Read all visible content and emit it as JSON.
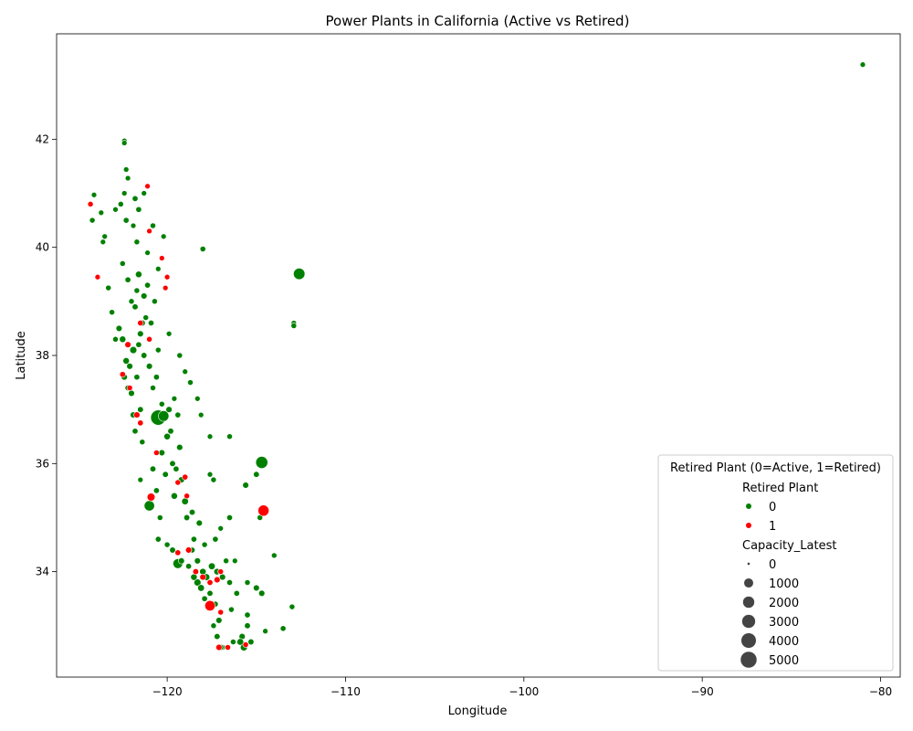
{
  "chart_data": {
    "type": "scatter",
    "title": "Power Plants in California (Active vs Retired)",
    "xlabel": "Longitude",
    "ylabel": "Latitude",
    "xlim": [
      -126.2,
      -78.9
    ],
    "ylim": [
      32.05,
      43.95
    ],
    "x_ticks": [
      -120,
      -110,
      -100,
      -90,
      -80
    ],
    "y_ticks": [
      34,
      36,
      38,
      40,
      42
    ],
    "x_tick_labels": [
      "−120",
      "−110",
      "−100",
      "−90",
      "−80"
    ],
    "y_tick_labels": [
      "34",
      "36",
      "38",
      "40",
      "42"
    ],
    "grid": false,
    "legend": {
      "placement": "lower-right",
      "title": "Retired Plant (0=Active, 1=Retired)",
      "hue_title": "Retired Plant",
      "hue_entries": [
        {
          "label": "0",
          "color": "#008000"
        },
        {
          "label": "1",
          "color": "#ff0000"
        }
      ],
      "size_title": "Capacity_Latest",
      "size_entries": [
        {
          "label": "0",
          "capacity": 0
        },
        {
          "label": "1000",
          "capacity": 1000
        },
        {
          "label": "2000",
          "capacity": 2000
        },
        {
          "label": "3000",
          "capacity": 3000
        },
        {
          "label": "4000",
          "capacity": 4000
        },
        {
          "label": "5000",
          "capacity": 5000
        }
      ]
    },
    "colors": {
      "active": "#008000",
      "retired": "#ff0000"
    },
    "series": [
      {
        "name": "0",
        "retired": 0,
        "points": [
          [
            -81.0,
            43.38,
            60
          ],
          [
            -112.6,
            39.51,
            1800
          ],
          [
            -114.7,
            36.02,
            2100
          ],
          [
            -120.5,
            36.85,
            4000
          ],
          [
            -120.2,
            36.88,
            1400
          ],
          [
            -119.4,
            34.15,
            1100
          ],
          [
            -121.0,
            35.22,
            1300
          ],
          [
            -117.6,
            36.5,
            60
          ],
          [
            -116.5,
            36.5,
            80
          ],
          [
            -118.0,
            39.97,
            90
          ],
          [
            -112.9,
            38.6,
            60
          ],
          [
            -112.9,
            38.55,
            80
          ],
          [
            -114.0,
            34.3,
            70
          ],
          [
            -113.0,
            33.35,
            80
          ],
          [
            -113.5,
            32.95,
            90
          ],
          [
            -114.5,
            32.9,
            60
          ],
          [
            -122.4,
            41.97,
            60
          ],
          [
            -122.4,
            41.93,
            60
          ],
          [
            -122.3,
            41.44,
            60
          ],
          [
            -122.2,
            41.28,
            60
          ],
          [
            -124.1,
            40.97,
            60
          ],
          [
            -123.7,
            40.64,
            60
          ],
          [
            -124.2,
            40.5,
            80
          ],
          [
            -123.5,
            40.2,
            60
          ],
          [
            -123.6,
            40.1,
            60
          ],
          [
            -123.3,
            39.25,
            80
          ],
          [
            -123.1,
            38.8,
            80
          ],
          [
            -122.5,
            38.3,
            200
          ],
          [
            -121.8,
            40.9,
            100
          ],
          [
            -121.6,
            40.7,
            100
          ],
          [
            -121.3,
            41.0,
            60
          ],
          [
            -120.8,
            40.4,
            80
          ],
          [
            -120.2,
            40.2,
            60
          ],
          [
            -120.5,
            39.6,
            60
          ],
          [
            -121.6,
            39.5,
            200
          ],
          [
            -121.3,
            39.1,
            150
          ],
          [
            -121.8,
            38.9,
            120
          ],
          [
            -121.2,
            38.7,
            80
          ],
          [
            -121.5,
            38.4,
            150
          ],
          [
            -121.9,
            38.1,
            300
          ],
          [
            -122.1,
            37.8,
            150
          ],
          [
            -121.7,
            37.6,
            100
          ],
          [
            -122.0,
            37.3,
            150
          ],
          [
            -121.5,
            37.0,
            120
          ],
          [
            -120.8,
            37.4,
            80
          ],
          [
            -120.3,
            37.1,
            80
          ],
          [
            -119.6,
            37.2,
            60
          ],
          [
            -119.4,
            36.9,
            100
          ],
          [
            -119.8,
            36.6,
            120
          ],
          [
            -119.3,
            36.3,
            150
          ],
          [
            -119.7,
            36.0,
            120
          ],
          [
            -119.2,
            35.7,
            150
          ],
          [
            -119.6,
            35.4,
            200
          ],
          [
            -119.0,
            35.3,
            250
          ],
          [
            -118.6,
            35.1,
            120
          ],
          [
            -118.2,
            34.9,
            150
          ],
          [
            -118.5,
            34.6,
            100
          ],
          [
            -117.9,
            34.5,
            80
          ],
          [
            -117.3,
            34.6,
            100
          ],
          [
            -117.0,
            34.8,
            60
          ],
          [
            -116.7,
            34.2,
            80
          ],
          [
            -116.2,
            34.2,
            60
          ],
          [
            -118.3,
            34.2,
            150
          ],
          [
            -118.0,
            34.0,
            200
          ],
          [
            -117.8,
            33.9,
            250
          ],
          [
            -118.3,
            33.8,
            300
          ],
          [
            -117.6,
            33.6,
            120
          ],
          [
            -117.3,
            33.4,
            100
          ],
          [
            -117.1,
            33.1,
            150
          ],
          [
            -117.2,
            32.8,
            120
          ],
          [
            -116.9,
            32.6,
            100
          ],
          [
            -116.3,
            32.7,
            80
          ],
          [
            -115.8,
            32.8,
            150
          ],
          [
            -115.5,
            33.0,
            120
          ],
          [
            -115.5,
            33.2,
            100
          ],
          [
            -115.0,
            33.7,
            150
          ],
          [
            -115.5,
            33.8,
            80
          ],
          [
            -115.6,
            35.6,
            150
          ],
          [
            -115.0,
            35.8,
            120
          ],
          [
            -114.8,
            35.0,
            80
          ],
          [
            -116.5,
            35.0,
            100
          ],
          [
            -117.4,
            35.7,
            80
          ],
          [
            -117.6,
            35.8,
            60
          ],
          [
            -118.1,
            36.9,
            60
          ],
          [
            -118.3,
            37.2,
            60
          ],
          [
            -118.7,
            37.5,
            80
          ],
          [
            -119.0,
            37.7,
            60
          ],
          [
            -119.3,
            38.0,
            80
          ],
          [
            -119.9,
            38.4,
            60
          ],
          [
            -120.5,
            38.1,
            80
          ],
          [
            -120.9,
            38.6,
            100
          ],
          [
            -121.1,
            39.9,
            60
          ],
          [
            -121.7,
            40.1,
            80
          ],
          [
            -122.3,
            40.5,
            100
          ],
          [
            -122.6,
            40.8,
            80
          ],
          [
            -122.9,
            40.7,
            60
          ],
          [
            -122.5,
            39.7,
            80
          ],
          [
            -122.2,
            39.4,
            100
          ],
          [
            -122.0,
            39.0,
            80
          ],
          [
            -122.7,
            38.5,
            150
          ],
          [
            -122.9,
            38.3,
            80
          ],
          [
            -122.3,
            37.9,
            200
          ],
          [
            -122.4,
            37.6,
            150
          ],
          [
            -122.2,
            37.4,
            100
          ],
          [
            -121.9,
            36.9,
            150
          ],
          [
            -121.8,
            36.6,
            100
          ],
          [
            -121.4,
            36.4,
            80
          ],
          [
            -120.8,
            35.9,
            120
          ],
          [
            -120.6,
            35.5,
            100
          ],
          [
            -120.4,
            35.0,
            80
          ],
          [
            -120.5,
            34.6,
            100
          ],
          [
            -120.0,
            34.5,
            80
          ],
          [
            -119.7,
            34.4,
            120
          ],
          [
            -119.2,
            34.2,
            150
          ],
          [
            -118.8,
            34.1,
            100
          ],
          [
            -118.5,
            33.9,
            200
          ],
          [
            -118.1,
            33.7,
            250
          ],
          [
            -117.9,
            33.5,
            100
          ],
          [
            -117.4,
            33.0,
            80
          ],
          [
            -117.0,
            32.6,
            150
          ],
          [
            -120.0,
            36.5,
            200
          ],
          [
            -120.3,
            36.2,
            150
          ],
          [
            -120.1,
            35.8,
            120
          ],
          [
            -119.5,
            35.9,
            100
          ],
          [
            -119.9,
            37.0,
            150
          ],
          [
            -120.6,
            37.6,
            100
          ],
          [
            -121.0,
            37.8,
            150
          ],
          [
            -121.3,
            38.0,
            120
          ],
          [
            -121.6,
            38.2,
            100
          ],
          [
            -121.4,
            38.6,
            150
          ],
          [
            -121.7,
            39.2,
            80
          ],
          [
            -121.1,
            39.3,
            100
          ],
          [
            -120.7,
            39.0,
            80
          ],
          [
            -121.9,
            40.4,
            60
          ],
          [
            -122.4,
            41.0,
            60
          ],
          [
            -121.5,
            35.7,
            60
          ],
          [
            -118.9,
            35.0,
            120
          ],
          [
            -118.6,
            34.4,
            100
          ],
          [
            -117.5,
            34.1,
            250
          ],
          [
            -117.2,
            34.0,
            200
          ],
          [
            -116.9,
            33.9,
            150
          ],
          [
            -116.5,
            33.8,
            100
          ],
          [
            -116.4,
            33.3,
            80
          ],
          [
            -116.1,
            33.6,
            100
          ],
          [
            -115.9,
            32.7,
            250
          ],
          [
            -115.7,
            32.6,
            300
          ],
          [
            -115.3,
            32.7,
            120
          ],
          [
            -114.7,
            33.6,
            150
          ]
        ]
      },
      {
        "name": "1",
        "retired": 1,
        "points": [
          [
            -114.6,
            35.13,
            1600
          ],
          [
            -117.6,
            33.37,
            1300
          ],
          [
            -120.9,
            35.38,
            500
          ],
          [
            -124.3,
            40.8,
            80
          ],
          [
            -123.9,
            39.45,
            60
          ],
          [
            -121.1,
            41.13,
            60
          ],
          [
            -121.0,
            40.3,
            60
          ],
          [
            -120.3,
            39.8,
            60
          ],
          [
            -120.1,
            39.25,
            60
          ],
          [
            -120.0,
            39.45,
            60
          ],
          [
            -121.5,
            38.6,
            100
          ],
          [
            -121.0,
            38.3,
            80
          ],
          [
            -122.2,
            38.2,
            150
          ],
          [
            -122.5,
            37.65,
            100
          ],
          [
            -122.1,
            37.4,
            80
          ],
          [
            -121.7,
            36.9,
            150
          ],
          [
            -121.5,
            36.75,
            100
          ],
          [
            -120.6,
            36.2,
            80
          ],
          [
            -119.4,
            35.65,
            80
          ],
          [
            -119.0,
            35.75,
            100
          ],
          [
            -118.9,
            35.4,
            80
          ],
          [
            -119.4,
            34.35,
            100
          ],
          [
            -118.8,
            34.4,
            150
          ],
          [
            -118.4,
            34.0,
            120
          ],
          [
            -118.0,
            33.9,
            150
          ],
          [
            -117.6,
            33.8,
            100
          ],
          [
            -117.2,
            33.85,
            150
          ],
          [
            -117.0,
            34.0,
            80
          ],
          [
            -117.0,
            33.25,
            80
          ],
          [
            -117.1,
            32.6,
            150
          ],
          [
            -116.6,
            32.6,
            80
          ],
          [
            -115.6,
            32.65,
            80
          ]
        ]
      }
    ]
  }
}
